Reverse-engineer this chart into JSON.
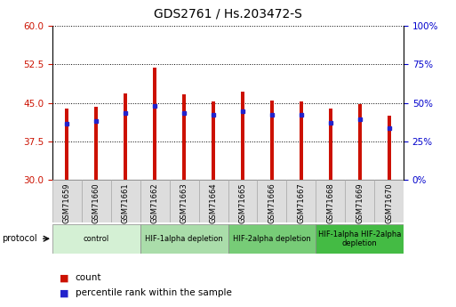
{
  "title": "GDS2761 / Hs.203472-S",
  "samples": [
    "GSM71659",
    "GSM71660",
    "GSM71661",
    "GSM71662",
    "GSM71663",
    "GSM71664",
    "GSM71665",
    "GSM71666",
    "GSM71667",
    "GSM71668",
    "GSM71669",
    "GSM71670"
  ],
  "count_values": [
    43.8,
    44.2,
    46.8,
    51.8,
    46.7,
    45.3,
    47.2,
    45.5,
    45.3,
    43.8,
    44.8,
    42.5
  ],
  "percentile_values": [
    36.5,
    38.0,
    43.5,
    48.0,
    43.5,
    42.0,
    44.5,
    42.5,
    42.0,
    37.0,
    39.5,
    33.5
  ],
  "bar_base": 30,
  "ylim_left": [
    30,
    60
  ],
  "ylim_right": [
    0,
    100
  ],
  "yticks_left": [
    30,
    37.5,
    45,
    52.5,
    60
  ],
  "yticks_right": [
    0,
    25,
    50,
    75,
    100
  ],
  "bar_color": "#cc1100",
  "percentile_color": "#2222cc",
  "groups": [
    {
      "label": "control",
      "start": 0,
      "end": 3,
      "color": "#d4f0d4"
    },
    {
      "label": "HIF-1alpha depletion",
      "start": 3,
      "end": 6,
      "color": "#aaddaa"
    },
    {
      "label": "HIF-2alpha depletion",
      "start": 6,
      "end": 9,
      "color": "#77cc77"
    },
    {
      "label": "HIF-1alpha HIF-2alpha\ndepletion",
      "start": 9,
      "end": 12,
      "color": "#44bb44"
    }
  ],
  "tick_label_color_left": "#cc1100",
  "tick_label_color_right": "#0000cc",
  "bar_width": 0.12,
  "figsize": [
    5.13,
    3.45
  ],
  "dpi": 100
}
